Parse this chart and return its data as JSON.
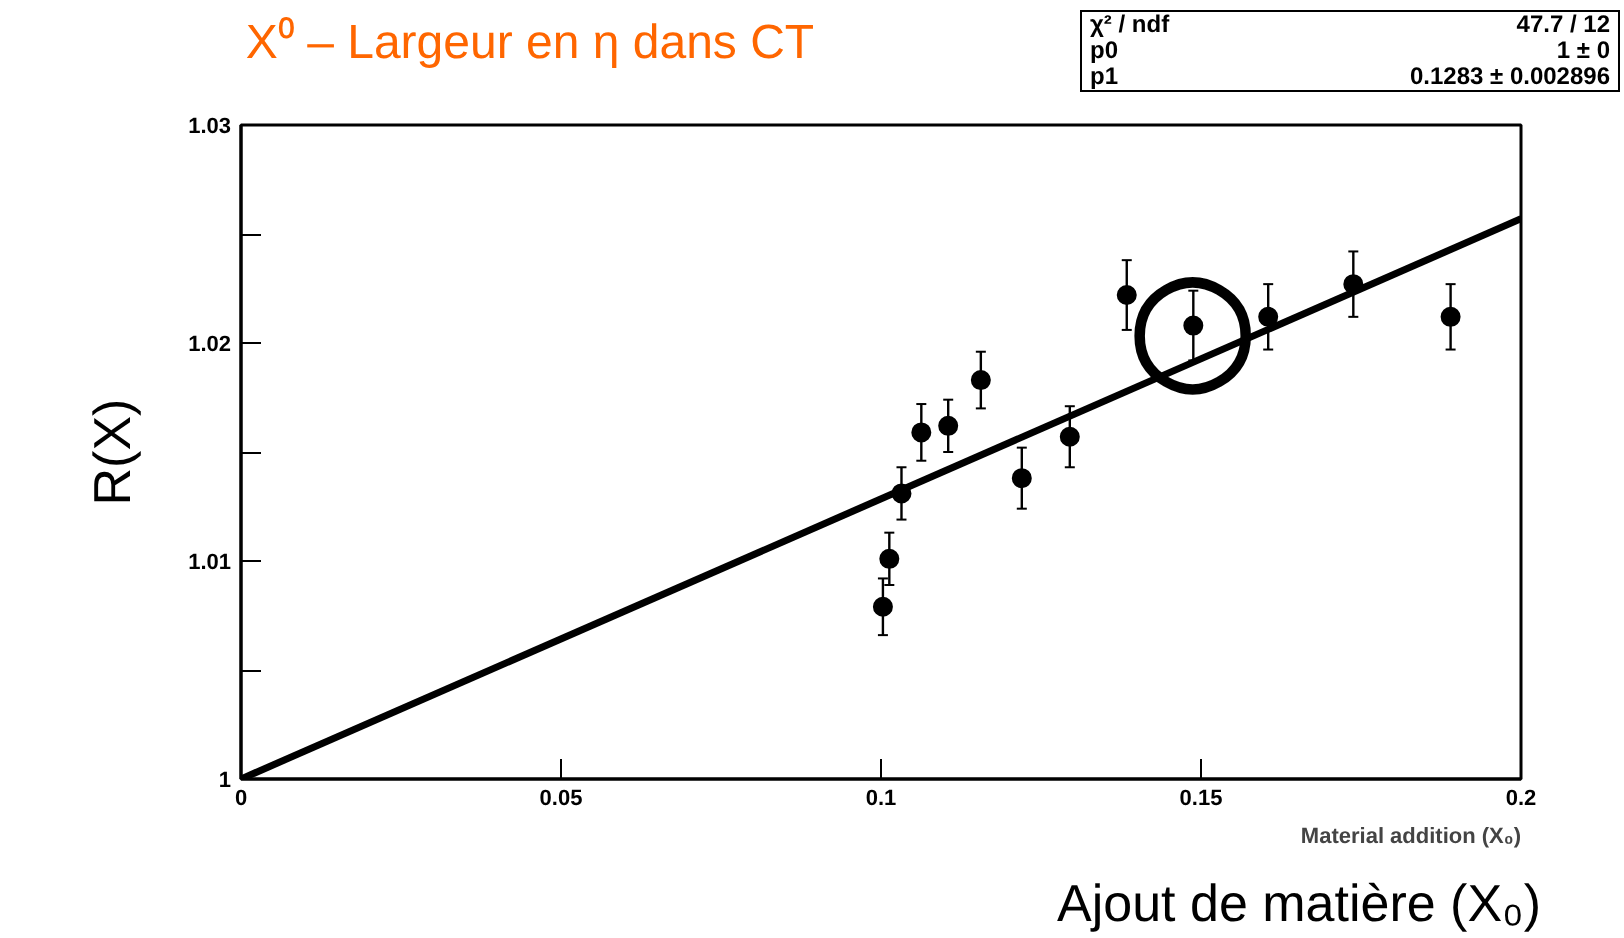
{
  "chart_data": {
    "type": "scatter",
    "title": "X⁰ – Largeur en η dans CT",
    "xlabel": "Material addition (X₀)",
    "ylabel": "R(X)",
    "xlim": [
      0,
      0.2
    ],
    "ylim": [
      1,
      1.03
    ],
    "xticks": [
      0,
      0.05,
      0.1,
      0.15,
      0.2
    ],
    "yticks": [
      1,
      {
        "value": 1.005,
        "label": null
      },
      1.01,
      {
        "value": 1.015,
        "label": null
      },
      1.02,
      {
        "value": 1.025,
        "label": null
      },
      1.03
    ],
    "grid": false,
    "series": [
      {
        "marker": "circle",
        "color": "#000000",
        "x": [
          0.1003,
          0.1013,
          0.1032,
          0.1063,
          0.1105,
          0.1156,
          0.122,
          0.1295,
          0.1384,
          0.1488,
          0.1605,
          0.1738,
          0.189
        ],
        "values": [
          1.0079,
          1.0101,
          1.0131,
          1.0159,
          1.0162,
          1.0183,
          1.0138,
          1.0157,
          1.0222,
          1.0208,
          1.0212,
          1.0227,
          1.0212
        ],
        "errors": [
          0.0013,
          0.0012,
          0.0012,
          0.0013,
          0.0012,
          0.0013,
          0.0014,
          0.0014,
          0.0016,
          0.0016,
          0.0015,
          0.0015,
          0.0015
        ]
      },
      {
        "type": "line",
        "marker": "none",
        "color": "#000000",
        "x": [
          0,
          0.2
        ],
        "values": [
          1,
          1.0257
        ]
      }
    ],
    "annotations": [
      "χ² / ndf",
      "47.7 / 12",
      "p0",
      "1 ± 0",
      "p1",
      "0.1283 ± 0.002896",
      "Ajout de matière (X₀)",
      {
        "text": "◯",
        "x": 0.1488,
        "y": 1.0208
      }
    ]
  }
}
